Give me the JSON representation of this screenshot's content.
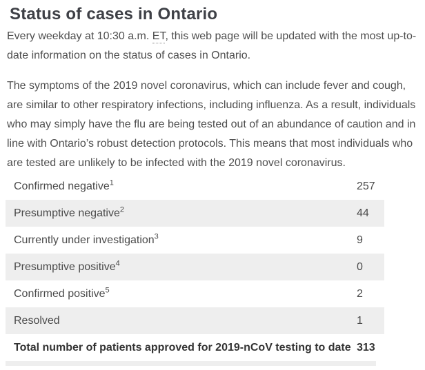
{
  "page": {
    "title": "Status of cases in Ontario"
  },
  "intro": {
    "before_abbr": "Every weekday at 10:30 a.m. ",
    "abbr": "ET",
    "after_abbr": ", this web page will be updated with the most up-to-date information on the status of cases in Ontario."
  },
  "symptoms_paragraph": "The symptoms of the 2019 novel coronavirus, which can include fever and cough, are similar to other respiratory infections, including influenza. As a result, individuals who may simply have the flu are being tested out of an abundance of caution and in line with Ontario’s robust detection protocols. This means that most individuals who are tested are unlikely to be infected with the 2019 novel coronavirus.",
  "table": {
    "rows": [
      {
        "label": "Confirmed negative",
        "footnote": "1",
        "value": "257",
        "shaded": false,
        "bold": false
      },
      {
        "label": "Presumptive negative",
        "footnote": "2",
        "value": "44",
        "shaded": true,
        "bold": false
      },
      {
        "label": "Currently under investigation",
        "footnote": "3",
        "value": "9",
        "shaded": false,
        "bold": false
      },
      {
        "label": "Presumptive positive",
        "footnote": "4",
        "value": "0",
        "shaded": true,
        "bold": false
      },
      {
        "label": "Confirmed positive",
        "footnote": "5",
        "value": "2",
        "shaded": false,
        "bold": false
      },
      {
        "label": "Resolved",
        "footnote": "",
        "value": "1",
        "shaded": true,
        "bold": false
      },
      {
        "label": "Total number of patients approved for 2019-nCoV testing to date",
        "footnote": "",
        "value": "313",
        "shaded": false,
        "bold": true
      }
    ]
  },
  "colors": {
    "heading_text": "#3e4046",
    "body_text": "#4e4e4e",
    "table_text": "#4a4a4a",
    "total_text": "#333333",
    "shaded_row_bg": "#eeeeee"
  }
}
